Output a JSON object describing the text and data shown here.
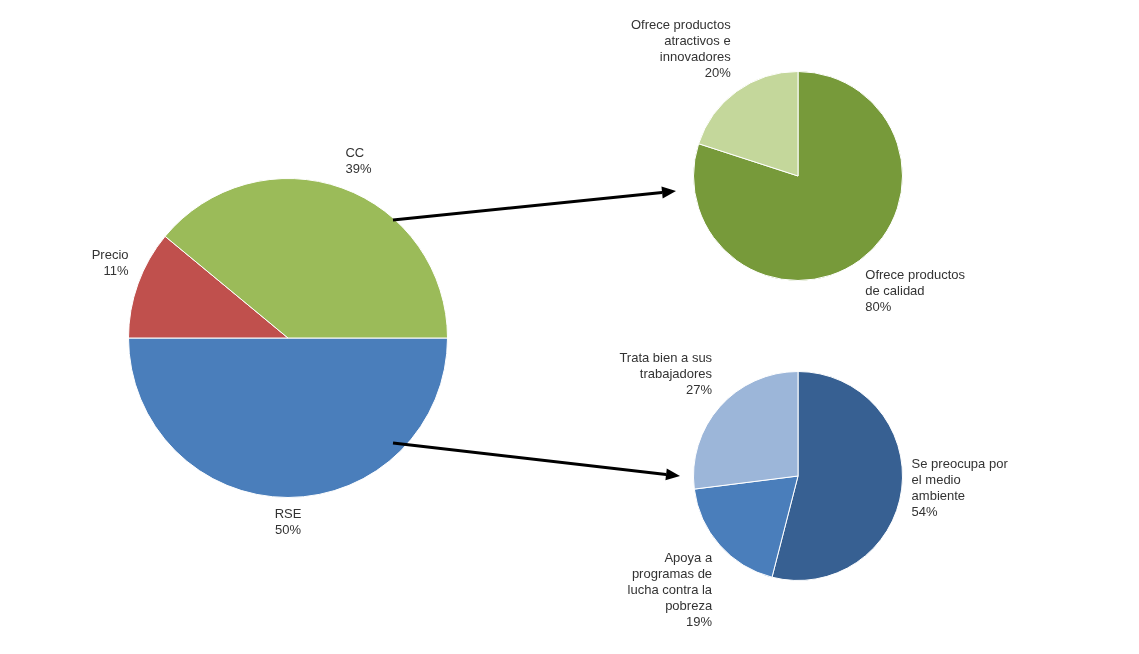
{
  "chart_data": [
    {
      "type": "pie",
      "categories": [
        "RSE",
        "Precio",
        "CC"
      ],
      "values": [
        50,
        11,
        39
      ],
      "colors": [
        "#4a7ebb",
        "#c0504d",
        "#9bbb59"
      ],
      "value_labels": [
        "50%",
        "11%",
        "39%"
      ]
    },
    {
      "type": "pie",
      "categories": [
        "Ofrece productos de calidad",
        "Ofrece productos atractivos e innovadores"
      ],
      "values": [
        80,
        20
      ],
      "colors": [
        "#779a3a",
        "#c4d79b"
      ],
      "value_labels": [
        "80%",
        "20%"
      ]
    },
    {
      "type": "pie",
      "categories": [
        "Se preocupa por el medio ambiente",
        "Apoya a programas de lucha contra la pobreza",
        "Trata bien a sus trabajadores"
      ],
      "values": [
        54,
        19,
        27
      ],
      "colors": [
        "#376092",
        "#4a7ebb",
        "#9cb6d9"
      ],
      "value_labels": [
        "54%",
        "19%",
        "27%"
      ]
    }
  ]
}
